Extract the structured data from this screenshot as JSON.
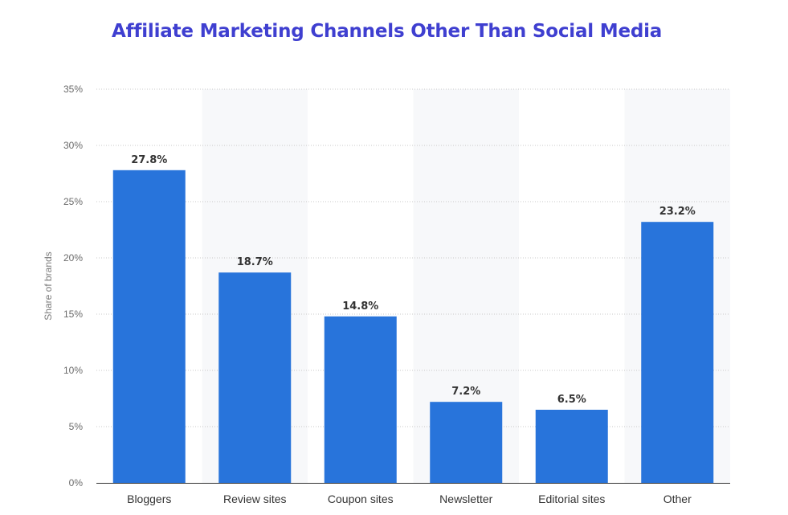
{
  "chart_data": {
    "type": "bar",
    "title": "Affiliate Marketing Channels Other Than Social Media",
    "xlabel": "",
    "ylabel": "Share of brands",
    "categories": [
      "Bloggers",
      "Review sites",
      "Coupon sites",
      "Newsletter",
      "Editorial sites",
      "Other"
    ],
    "values": [
      27.8,
      18.7,
      14.8,
      7.2,
      6.5,
      23.2
    ],
    "value_labels": [
      "27.8%",
      "18.7%",
      "14.8%",
      "7.2%",
      "6.5%",
      "23.2%"
    ],
    "ylim": [
      0,
      35
    ],
    "yticks": [
      0,
      5,
      10,
      15,
      20,
      25,
      30,
      35
    ],
    "ytick_labels": [
      "0%",
      "5%",
      "10%",
      "15%",
      "20%",
      "25%",
      "30%",
      "35%"
    ],
    "grid": true,
    "bar_color": "#2874db",
    "band_color": "#f7f8fa"
  }
}
